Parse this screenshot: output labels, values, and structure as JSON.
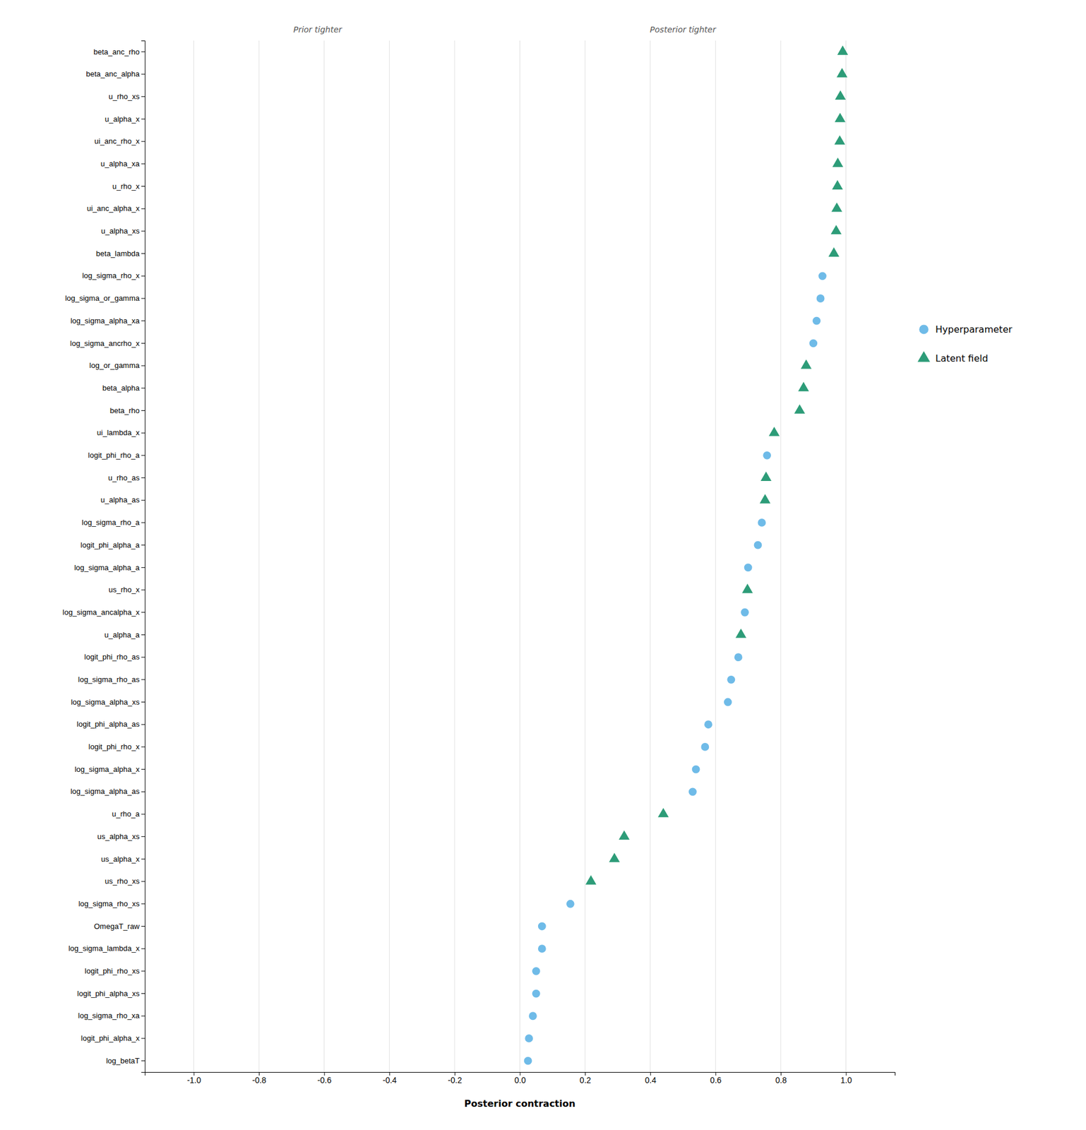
{
  "chart_data": {
    "type": "scatter",
    "orientation": "horizontal",
    "xlabel": "Posterior contraction",
    "categories": [
      "beta_anc_rho",
      "beta_anc_alpha",
      "u_rho_xs",
      "u_alpha_x",
      "ui_anc_rho_x",
      "u_alpha_xa",
      "u_rho_x",
      "ui_anc_alpha_x",
      "u_alpha_xs",
      "beta_lambda",
      "log_sigma_rho_x",
      "log_sigma_or_gamma",
      "log_sigma_alpha_xa",
      "log_sigma_ancrho_x",
      "log_or_gamma",
      "beta_alpha",
      "beta_rho",
      "ui_lambda_x",
      "logit_phi_rho_a",
      "u_rho_as",
      "u_alpha_as",
      "log_sigma_rho_a",
      "logit_phi_alpha_a",
      "log_sigma_alpha_a",
      "us_rho_x",
      "log_sigma_ancalpha_x",
      "u_alpha_a",
      "logit_phi_rho_as",
      "log_sigma_rho_as",
      "log_sigma_alpha_xs",
      "logit_phi_alpha_as",
      "logit_phi_rho_x",
      "log_sigma_alpha_x",
      "log_sigma_alpha_as",
      "u_rho_a",
      "us_alpha_xs",
      "us_alpha_x",
      "us_rho_xs",
      "log_sigma_rho_xs",
      "OmegaT_raw",
      "log_sigma_lambda_x",
      "logit_phi_rho_xs",
      "logit_phi_alpha_xs",
      "log_sigma_rho_xa",
      "logit_phi_alpha_x",
      "log_betaT"
    ],
    "series": [
      {
        "name": "Hyperparameter",
        "color": "#6FBBE8",
        "marker": "circle",
        "values": [
          null,
          null,
          null,
          null,
          null,
          null,
          null,
          null,
          null,
          null,
          0.928,
          0.922,
          0.91,
          0.9,
          null,
          null,
          null,
          null,
          0.758,
          null,
          null,
          0.742,
          0.73,
          0.7,
          null,
          0.69,
          null,
          0.67,
          0.648,
          0.638,
          0.578,
          0.568,
          0.54,
          0.53,
          null,
          null,
          null,
          null,
          0.155,
          0.068,
          0.068,
          0.05,
          0.05,
          0.04,
          0.028,
          0.025
        ]
      },
      {
        "name": "Latent field",
        "color": "#2D9C78",
        "marker": "triangle",
        "values": [
          0.99,
          0.988,
          0.983,
          0.982,
          0.981,
          0.975,
          0.974,
          0.972,
          0.97,
          0.963,
          null,
          null,
          null,
          null,
          0.878,
          0.87,
          0.858,
          0.78,
          null,
          0.755,
          0.752,
          null,
          null,
          null,
          0.698,
          null,
          0.678,
          null,
          null,
          null,
          null,
          null,
          null,
          null,
          0.44,
          0.32,
          0.29,
          0.218,
          null,
          null,
          null,
          null,
          null,
          null,
          null,
          null
        ]
      }
    ],
    "xlim": [
      -1.15,
      1.15
    ],
    "xticks": [
      {
        "value": -1.0,
        "label": "-1.0"
      },
      -0.8,
      -0.6,
      -0.4,
      -0.2,
      {
        "value": 0.0,
        "label": "0.0"
      },
      0.2,
      0.4,
      0.6,
      0.8,
      {
        "value": 1.0,
        "label": "1.0"
      }
    ],
    "annotations": [
      {
        "text": "Prior tighter",
        "x": -0.62
      },
      {
        "text": "Posterior tighter",
        "x": 0.5
      }
    ],
    "grid": true,
    "legend": "right"
  }
}
